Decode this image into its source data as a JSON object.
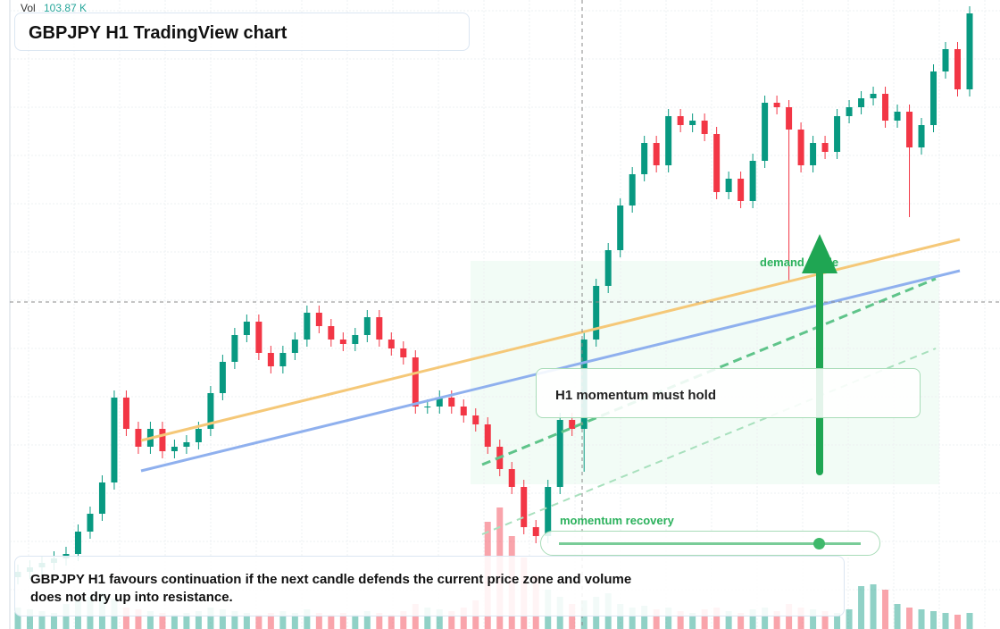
{
  "chart_data": {
    "type": "candlestick",
    "title": "GBPJPY H1 TradingView chart",
    "volume_label": "Vol",
    "volume_value": "103.87 K",
    "annotations": {
      "guide": "demand guide",
      "hold": "H1 momentum must hold",
      "recovery": "momentum recovery",
      "note": "GBPJPY H1 favours continuation if the next candle defends the current price zone and volume does not dry up into resistance."
    },
    "up_color": "#089981",
    "down_color": "#f23645",
    "ylim": [
      0,
      704
    ],
    "y2lim": [
      0,
      400
    ],
    "candles": [
      [
        58,
        72,
        50,
        64
      ],
      [
        64,
        77,
        56,
        69
      ],
      [
        69,
        82,
        61,
        74
      ],
      [
        74,
        87,
        66,
        79
      ],
      [
        79,
        92,
        71,
        84
      ],
      [
        84,
        117,
        76,
        109
      ],
      [
        109,
        137,
        101,
        129
      ],
      [
        129,
        172,
        121,
        164
      ],
      [
        164,
        267,
        156,
        259
      ],
      [
        259,
        267,
        216,
        224
      ],
      [
        224,
        232,
        196,
        204
      ],
      [
        204,
        232,
        196,
        224
      ],
      [
        224,
        232,
        191,
        199
      ],
      [
        199,
        212,
        191,
        204
      ],
      [
        204,
        217,
        196,
        209
      ],
      [
        209,
        232,
        201,
        224
      ],
      [
        224,
        272,
        216,
        264
      ],
      [
        264,
        307,
        256,
        299
      ],
      [
        299,
        337,
        291,
        329
      ],
      [
        329,
        352,
        321,
        344
      ],
      [
        344,
        352,
        301,
        309
      ],
      [
        309,
        317,
        286,
        294
      ],
      [
        294,
        317,
        286,
        309
      ],
      [
        309,
        332,
        301,
        324
      ],
      [
        324,
        362,
        316,
        354
      ],
      [
        354,
        362,
        331,
        339
      ],
      [
        339,
        347,
        316,
        324
      ],
      [
        324,
        332,
        311,
        319
      ],
      [
        319,
        337,
        311,
        329
      ],
      [
        329,
        357,
        321,
        349
      ],
      [
        349,
        357,
        316,
        324
      ],
      [
        324,
        332,
        306,
        314
      ],
      [
        314,
        322,
        296,
        304
      ],
      [
        304,
        312,
        241,
        249
      ],
      [
        249,
        257,
        241,
        249
      ],
      [
        249,
        267,
        241,
        259
      ],
      [
        259,
        267,
        241,
        249
      ],
      [
        249,
        257,
        231,
        239
      ],
      [
        239,
        247,
        221,
        229
      ],
      [
        229,
        237,
        196,
        204
      ],
      [
        204,
        212,
        171,
        179
      ],
      [
        179,
        187,
        151,
        159
      ],
      [
        159,
        167,
        106,
        114
      ],
      [
        114,
        122,
        96,
        104
      ],
      [
        104,
        167,
        96,
        159
      ],
      [
        159,
        242,
        151,
        234
      ],
      [
        234,
        242,
        216,
        224
      ],
      [
        224,
        332,
        176,
        324
      ],
      [
        324,
        392,
        316,
        384
      ],
      [
        384,
        432,
        376,
        424
      ],
      [
        424,
        482,
        416,
        474
      ],
      [
        474,
        517,
        466,
        509
      ],
      [
        509,
        552,
        501,
        544
      ],
      [
        544,
        552,
        511,
        519
      ],
      [
        519,
        582,
        511,
        574
      ],
      [
        574,
        582,
        556,
        564
      ],
      [
        564,
        577,
        556,
        569
      ],
      [
        569,
        577,
        546,
        554
      ],
      [
        554,
        562,
        481,
        489
      ],
      [
        489,
        512,
        481,
        504
      ],
      [
        504,
        512,
        471,
        479
      ],
      [
        479,
        532,
        471,
        524
      ],
      [
        524,
        597,
        516,
        589
      ],
      [
        589,
        597,
        576,
        584
      ],
      [
        584,
        592,
        389,
        559
      ],
      [
        559,
        567,
        511,
        519
      ],
      [
        519,
        552,
        511,
        544
      ],
      [
        544,
        552,
        526,
        534
      ],
      [
        534,
        582,
        526,
        574
      ],
      [
        574,
        592,
        566,
        584
      ],
      [
        584,
        602,
        576,
        594
      ],
      [
        594,
        607,
        586,
        599
      ],
      [
        599,
        607,
        561,
        569
      ],
      [
        569,
        587,
        561,
        579
      ],
      [
        579,
        587,
        461,
        539
      ],
      [
        539,
        572,
        531,
        564
      ],
      [
        564,
        632,
        556,
        624
      ],
      [
        624,
        657,
        616,
        649
      ],
      [
        649,
        657,
        596,
        604
      ],
      [
        604,
        697,
        596,
        689
      ]
    ],
    "volume": [
      60,
      55,
      50,
      45,
      70,
      80,
      90,
      100,
      85,
      60,
      55,
      50,
      45,
      40,
      45,
      50,
      60,
      55,
      50,
      45,
      40,
      45,
      50,
      45,
      55,
      45,
      40,
      45,
      40,
      50,
      45,
      40,
      50,
      70,
      60,
      55,
      50,
      60,
      80,
      300,
      340,
      260,
      200,
      150,
      110,
      90,
      70,
      80,
      90,
      100,
      70,
      60,
      65,
      55,
      60,
      50,
      45,
      55,
      60,
      50,
      45,
      55,
      60,
      50,
      70,
      60,
      55,
      50,
      45,
      55,
      120,
      125,
      110,
      70,
      60,
      55,
      50,
      45,
      40,
      45
    ]
  }
}
